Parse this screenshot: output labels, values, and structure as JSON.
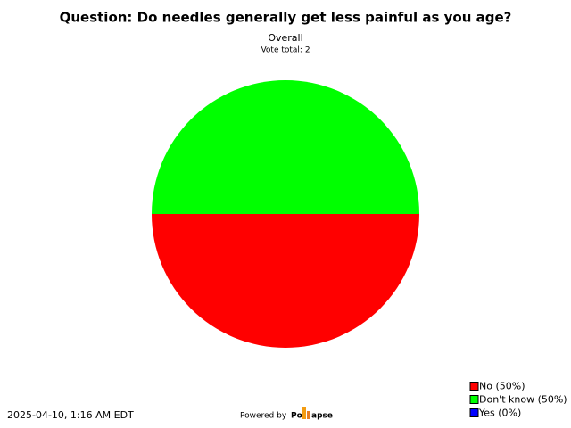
{
  "chart_data": {
    "type": "pie",
    "title": "Question: Do needles generally get less painful as you age?",
    "subtitle": "Overall",
    "note": "Vote total: 2",
    "categories": [
      "No (50%)",
      "Don't know (50%)",
      "Yes (0%)"
    ],
    "values": [
      50,
      50,
      0
    ],
    "colors": [
      "#ff0000",
      "#00ff00",
      "#0000ff"
    ],
    "legend_position": "bottom-right"
  },
  "footer": {
    "timestamp": "2025-04-10, 1:16 AM EDT",
    "powered_by": "Powered by",
    "brand_start": "Po",
    "brand_end": "apse"
  }
}
